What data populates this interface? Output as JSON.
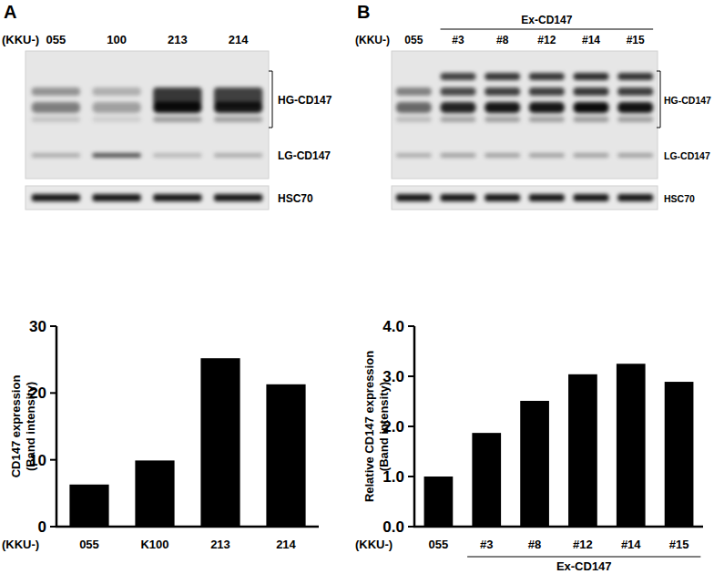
{
  "chart_data": [
    {
      "type": "bar",
      "categories": [
        "055",
        "K100",
        "213",
        "214"
      ],
      "values": [
        6.3,
        9.9,
        25.2,
        21.3
      ],
      "color": "#000000",
      "x_label": "(KKU-)",
      "y_label": [
        "CD147 expression",
        "(Band intensity)"
      ],
      "ylim": [
        0,
        30
      ],
      "yticks": [
        0,
        10,
        20,
        30
      ],
      "grid": false
    },
    {
      "type": "bar",
      "categories": [
        "055",
        "#3",
        "#8",
        "#12",
        "#14",
        "#15"
      ],
      "values": [
        1.0,
        1.87,
        2.51,
        3.04,
        3.25,
        2.89
      ],
      "color": "#000000",
      "x_label": "(KKU-)",
      "y_label": [
        "Relative CD147 expression",
        "(Band intensity)"
      ],
      "groups": [
        {
          "label": "Ex-CD147",
          "categories": [
            "#3",
            "#8",
            "#12",
            "#14",
            "#15"
          ]
        }
      ],
      "ylim": [
        0,
        4
      ],
      "yticks": [
        {
          "value": 0,
          "label": "0.0"
        },
        {
          "value": 1,
          "label": "1.0"
        },
        {
          "value": 2,
          "label": "2.0"
        },
        {
          "value": 3,
          "label": "3.0"
        },
        {
          "value": 4,
          "label": "4.0"
        }
      ],
      "grid": false
    }
  ],
  "blots": [
    {
      "panel": "A",
      "prefix": "(KKU-)",
      "lanes": [
        "055",
        "100",
        "213",
        "214"
      ],
      "bands": [
        "HG-CD147",
        "LG-CD147"
      ],
      "loading_control": "HSC70"
    },
    {
      "panel": "B",
      "prefix": "(KKU-)",
      "lanes": [
        "055",
        "#3",
        "#8",
        "#12",
        "#14",
        "#15"
      ],
      "group": "Ex-CD147",
      "bands": [
        "HG-CD147",
        "LG-CD147"
      ],
      "loading_control": "HSC70"
    }
  ]
}
